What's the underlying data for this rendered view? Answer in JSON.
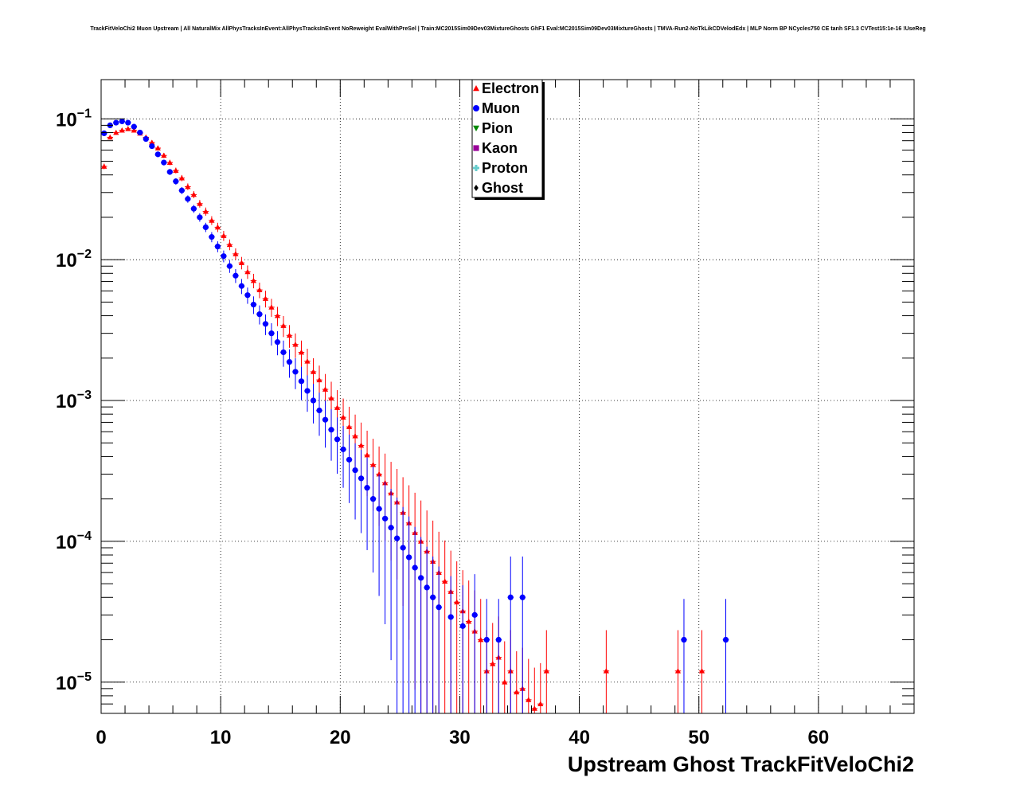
{
  "chart_data": {
    "type": "scatter",
    "title": "TrackFitVeloChi2 Muon Upstream | All NaturalMix AllPhysTracksInEvent:AllPhysTracksInEvent NoReweight EvalWithPreSel | Train:MC2015Sim09Dev03MixtureGhosts GhF1 Eval:MC2015Sim09Dev03MixtureGhosts | TMVA-Run2-NoTkLikCDVelodEdx | MLP Norm BP NCycles750 CE tanh SF1.3 CVTest15:1e-16 !UseReg",
    "xlabel": "Upstream Ghost TrackFitVeloChi2",
    "ylabel": "",
    "xlim": [
      0,
      68
    ],
    "ylim": [
      6e-06,
      0.19
    ],
    "yscale": "log",
    "grid": true,
    "x_ticks": [
      0,
      10,
      20,
      30,
      40,
      50,
      60
    ],
    "y_ticks": [
      {
        "value": 0.1,
        "mantissa": "10",
        "exp": "−1"
      },
      {
        "value": 0.01,
        "mantissa": "10",
        "exp": "−2"
      },
      {
        "value": 0.001,
        "mantissa": "10",
        "exp": "−3"
      },
      {
        "value": 0.0001,
        "mantissa": "10",
        "exp": "−4"
      },
      {
        "value": 1e-05,
        "mantissa": "10",
        "exp": "−5"
      }
    ],
    "legend_position": "top-center",
    "series": [
      {
        "name": "Electron",
        "color": "#ff0000",
        "marker": "triangle-up",
        "x": [
          0.25,
          0.75,
          1.25,
          1.75,
          2.25,
          2.75,
          3.25,
          3.75,
          4.25,
          4.75,
          5.25,
          5.75,
          6.25,
          6.75,
          7.25,
          7.75,
          8.25,
          8.75,
          9.25,
          9.75,
          10.25,
          10.75,
          11.25,
          11.75,
          12.25,
          12.75,
          13.25,
          13.75,
          14.25,
          14.75,
          15.25,
          15.75,
          16.25,
          16.75,
          17.25,
          17.75,
          18.25,
          18.75,
          19.25,
          19.75,
          20.25,
          20.75,
          21.25,
          21.75,
          22.25,
          22.75,
          23.25,
          23.75,
          24.25,
          24.75,
          25.25,
          25.75,
          26.25,
          26.75,
          27.25,
          27.75,
          28.25,
          28.75,
          29.25,
          29.75,
          30.25,
          30.75,
          31.25,
          31.75,
          32.25,
          32.75,
          33.25,
          33.75,
          34.25,
          34.75,
          35.25,
          35.75,
          36.25,
          36.75,
          37.25,
          42.25,
          48.25,
          50.25
        ],
        "y": [
          0.046,
          0.074,
          0.08,
          0.083,
          0.085,
          0.083,
          0.079,
          0.074,
          0.068,
          0.062,
          0.055,
          0.049,
          0.043,
          0.038,
          0.033,
          0.029,
          0.025,
          0.022,
          0.019,
          0.017,
          0.0148,
          0.0128,
          0.011,
          0.0095,
          0.0082,
          0.0071,
          0.0061,
          0.0053,
          0.0046,
          0.004,
          0.0034,
          0.0029,
          0.0025,
          0.0022,
          0.0019,
          0.0016,
          0.0014,
          0.0012,
          0.00104,
          0.00089,
          0.00076,
          0.00065,
          0.00056,
          0.00048,
          0.00041,
          0.00035,
          0.0003,
          0.00026,
          0.00022,
          0.00019,
          0.00016,
          0.000135,
          0.000115,
          0.0001,
          8.5e-05,
          7.2e-05,
          6e-05,
          5.2e-05,
          4.4e-05,
          3.7e-05,
          3.2e-05,
          2.7e-05,
          2.3e-05,
          2e-05,
          1.2e-05,
          1.35e-05,
          1.5e-05,
          1e-05,
          1.2e-05,
          8.5e-06,
          9e-06,
          7.5e-06,
          6.5e-06,
          7e-06,
          1.2e-05,
          1.2e-05,
          1.2e-05,
          1.2e-05
        ]
      },
      {
        "name": "Muon",
        "color": "#0000ff",
        "marker": "circle",
        "x": [
          0.25,
          0.75,
          1.25,
          1.75,
          2.25,
          2.75,
          3.25,
          3.75,
          4.25,
          4.75,
          5.25,
          5.75,
          6.25,
          6.75,
          7.25,
          7.75,
          8.25,
          8.75,
          9.25,
          9.75,
          10.25,
          10.75,
          11.25,
          11.75,
          12.25,
          12.75,
          13.25,
          13.75,
          14.25,
          14.75,
          15.25,
          15.75,
          16.25,
          16.75,
          17.25,
          17.75,
          18.25,
          18.75,
          19.25,
          19.75,
          20.25,
          20.75,
          21.25,
          21.75,
          22.25,
          22.75,
          23.25,
          23.75,
          24.25,
          24.75,
          25.25,
          25.75,
          26.25,
          26.75,
          27.25,
          27.75,
          28.25,
          29.25,
          30.25,
          31.25,
          32.25,
          33.25,
          34.25,
          35.25,
          48.75,
          52.25
        ],
        "y": [
          0.079,
          0.09,
          0.094,
          0.096,
          0.094,
          0.088,
          0.08,
          0.072,
          0.064,
          0.056,
          0.049,
          0.042,
          0.036,
          0.031,
          0.027,
          0.023,
          0.02,
          0.017,
          0.0145,
          0.0124,
          0.0106,
          0.009,
          0.0077,
          0.0065,
          0.0056,
          0.0048,
          0.0041,
          0.0035,
          0.003,
          0.0026,
          0.0022,
          0.00188,
          0.0016,
          0.00137,
          0.00117,
          0.001,
          0.00085,
          0.00073,
          0.00062,
          0.00053,
          0.00045,
          0.00038,
          0.00032,
          0.00028,
          0.00024,
          0.0002,
          0.00017,
          0.000145,
          0.000125,
          0.000105,
          9e-05,
          7.7e-05,
          6.5e-05,
          5.5e-05,
          4.7e-05,
          4e-05,
          3.4e-05,
          2.9e-05,
          2.5e-05,
          3e-05,
          2e-05,
          2e-05,
          4e-05,
          4e-05,
          2e-05,
          2e-05
        ]
      }
    ]
  },
  "legend": [
    {
      "label": "Electron",
      "color": "#ff0000",
      "marker": "triangle-up"
    },
    {
      "label": "Muon",
      "color": "#0000ff",
      "marker": "circle"
    },
    {
      "label": "Pion",
      "color": "#008800",
      "marker": "triangle-down"
    },
    {
      "label": "Kaon",
      "color": "#990099",
      "marker": "square"
    },
    {
      "label": "Proton",
      "color": "#66cccc",
      "marker": "cross"
    },
    {
      "label": "Ghost",
      "color": "#000000",
      "marker": "diamond"
    }
  ]
}
